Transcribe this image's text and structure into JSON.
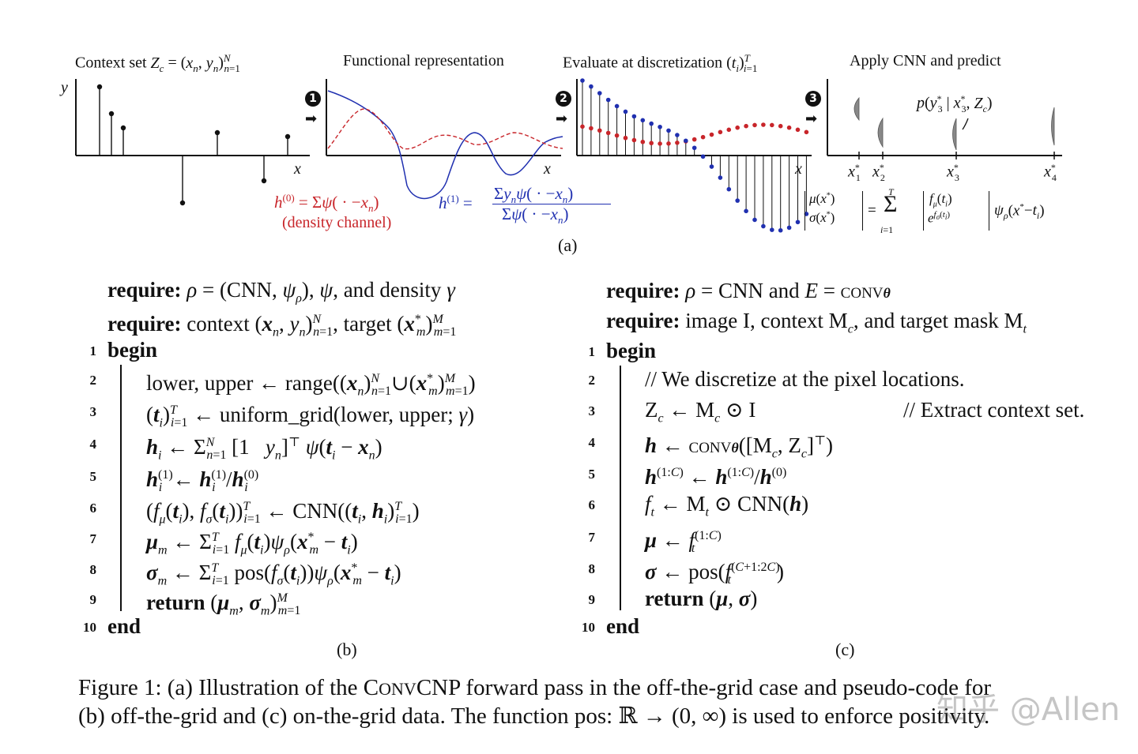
{
  "panel_a": {
    "titles": [
      "Context set Z_c = (x_n, y_n)^N_n=1",
      "Functional representation",
      "Evaluate at discretization (t_i)^T_i=1",
      "Apply CNN and predict"
    ],
    "step_markers": [
      "1",
      "2",
      "3"
    ],
    "axis_labels": {
      "y": "y",
      "x": "x"
    },
    "h0_formula": "h^(0) = Σ ψ( · − x_n)",
    "h0_note": "(density channel)",
    "h1_formula": "h^(1) = Σ y_n ψ( · − x_n) / Σ ψ( · − x_n)",
    "predict_label": "p(y*_3 | x*_3, Z_c)",
    "target_ticks": [
      "x*_1",
      "x*_2",
      "x*_3",
      "x*_4"
    ],
    "output_formula": "[μ(x*); σ(x*)] = Σ_{i=1}^{T} [f_μ(t_i); e^{f_σ(t_i)}] ψ_ρ(x* − t_i)",
    "sublabel": "(a)",
    "colors": {
      "density": "#c8252a",
      "signal": "#2030b0"
    }
  },
  "panel_b": {
    "require1": "require:",
    "require1_text": "ρ = (CNN, ψ_ρ), ψ, and density γ",
    "require2": "require:",
    "require2_text": "context (x_n, y_n)^N_n=1, target (x*_m)^M_m=1",
    "begin": "begin",
    "end": "end",
    "lines": [
      "lower, upper ← range((x_n)^N_n=1 ∪ (x*_m)^M_m=1)",
      "(t_i)^T_i=1 ← uniform_grid(lower, upper; γ)",
      "h_i ← Σ^N_n=1 [1  y_n]^⊤ ψ(t_i − x_n)",
      "h^(1)_i ← h^(1)_i / h^(0)_i",
      "(f_μ(t_i), f_σ(t_i))^T_i=1 ← CNN((t_i, h_i)^T_i=1)",
      "μ_m ← Σ^T_i=1 f_μ(t_i) ψ_ρ(x*_m − t_i)",
      "σ_m ← Σ^T_i=1 pos(f_σ(t_i)) ψ_ρ(x*_m − t_i)",
      "return (μ_m, σ_m)^M_m=1"
    ],
    "line_numbers": [
      "1",
      "2",
      "3",
      "4",
      "5",
      "6",
      "7",
      "8",
      "9",
      "10"
    ],
    "sublabel": "(b)"
  },
  "panel_c": {
    "require1": "require:",
    "require1_text": "ρ = CNN and E = conv_θ",
    "require2": "require:",
    "require2_text": "image I, context M_c, and target mask M_t",
    "begin": "begin",
    "end": "end",
    "lines": [
      "// We discretize at the pixel locations.",
      "Z_c ← M_c ⊙ I",
      "h ← conv_θ([M_c, Z_c]^⊤)",
      "h^(1:C) ← h^(1:C) / h^(0)",
      "f_t ← M_t ⊙ CNN(h)",
      "μ ← f_t^(1:C)",
      "σ ← pos(f_t^(C+1:2C))",
      "return (μ, σ)"
    ],
    "comment_line3": "// Extract context set.",
    "line_numbers": [
      "1",
      "2",
      "3",
      "4",
      "5",
      "6",
      "7",
      "8",
      "9",
      "10"
    ],
    "sublabel": "(c)"
  },
  "caption": {
    "line1": "Figure 1: (a) Illustration of the ConvCNP forward pass in the off-the-grid case and pseudo-code for",
    "line2": "(b) off-the-grid and (c) on-the-grid data. The function pos: ℝ → (0, ∞) is used to enforce positivity."
  },
  "watermark": "知乎 @Allen"
}
